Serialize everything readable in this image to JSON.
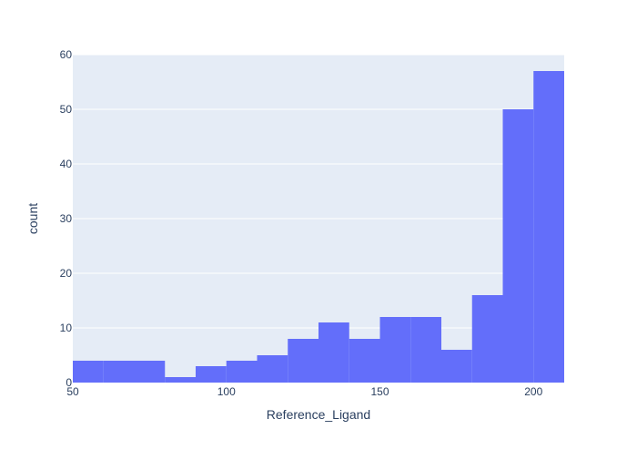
{
  "chart_data": {
    "type": "bar",
    "subtype": "histogram",
    "title": "",
    "xlabel": "Reference_Ligand",
    "ylabel": "count",
    "xlim": [
      50,
      210
    ],
    "ylim": [
      0,
      60
    ],
    "x_ticks": [
      50,
      100,
      150,
      200
    ],
    "y_ticks": [
      0,
      10,
      20,
      30,
      40,
      50,
      60
    ],
    "bin_width": 10,
    "bins": [
      {
        "start": 50,
        "end": 60,
        "count": 4
      },
      {
        "start": 60,
        "end": 70,
        "count": 4
      },
      {
        "start": 70,
        "end": 80,
        "count": 4
      },
      {
        "start": 80,
        "end": 90,
        "count": 1
      },
      {
        "start": 90,
        "end": 100,
        "count": 3
      },
      {
        "start": 100,
        "end": 110,
        "count": 4
      },
      {
        "start": 110,
        "end": 120,
        "count": 5
      },
      {
        "start": 120,
        "end": 130,
        "count": 8
      },
      {
        "start": 130,
        "end": 140,
        "count": 11
      },
      {
        "start": 140,
        "end": 150,
        "count": 8
      },
      {
        "start": 150,
        "end": 160,
        "count": 12
      },
      {
        "start": 160,
        "end": 170,
        "count": 12
      },
      {
        "start": 170,
        "end": 180,
        "count": 6
      },
      {
        "start": 180,
        "end": 190,
        "count": 16
      },
      {
        "start": 190,
        "end": 200,
        "count": 50
      },
      {
        "start": 200,
        "end": 210,
        "count": 57
      }
    ],
    "grid": true,
    "legend": "none",
    "colors": {
      "bar": "#636efa",
      "plot_background": "#e5ecf6",
      "grid": "#ffffff",
      "text": "#2a3f5f"
    }
  }
}
